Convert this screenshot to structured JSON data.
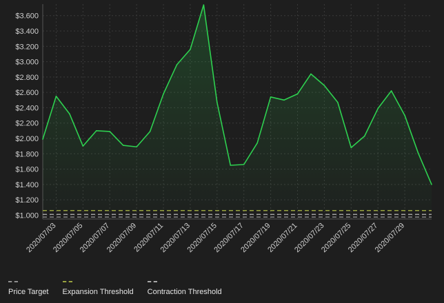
{
  "chart_data": {
    "type": "area",
    "x": [
      "2020/07/02",
      "2020/07/03",
      "2020/07/04",
      "2020/07/05",
      "2020/07/06",
      "2020/07/07",
      "2020/07/08",
      "2020/07/09",
      "2020/07/10",
      "2020/07/11",
      "2020/07/12",
      "2020/07/13",
      "2020/07/14",
      "2020/07/15",
      "2020/07/16",
      "2020/07/17",
      "2020/07/18",
      "2020/07/19",
      "2020/07/20",
      "2020/07/21",
      "2020/07/22",
      "2020/07/23",
      "2020/07/24",
      "2020/07/25",
      "2020/07/26",
      "2020/07/27",
      "2020/07/28",
      "2020/07/29",
      "2020/07/30",
      "2020/07/31"
    ],
    "x_tick_labels": [
      "2020/07/03",
      "2020/07/05",
      "2020/07/07",
      "2020/07/09",
      "2020/07/11",
      "2020/07/13",
      "2020/07/15",
      "2020/07/17",
      "2020/07/19",
      "2020/07/21",
      "2020/07/23",
      "2020/07/25",
      "2020/07/27",
      "2020/07/29"
    ],
    "series": [
      {
        "values": [
          1.99,
          2.55,
          2.32,
          1.9,
          2.1,
          2.09,
          1.91,
          1.89,
          2.09,
          2.58,
          2.96,
          3.16,
          3.74,
          2.47,
          1.65,
          1.66,
          1.94,
          2.54,
          2.5,
          2.58,
          2.84,
          2.69,
          2.47,
          1.88,
          2.03,
          2.39,
          2.62,
          2.3,
          1.81,
          1.4
        ],
        "color": "#2ed150"
      }
    ],
    "reference_lines": [
      {
        "name": "Price Target",
        "value": 0.975,
        "color": "#8f8f8f"
      },
      {
        "name": "Expansion Threshold",
        "value": 1.06,
        "color": "#9aa33f"
      },
      {
        "name": "Contraction Threshold",
        "value": 1.01,
        "color": "#a9a9a9"
      }
    ],
    "y_ticks": [
      "$1.000",
      "$1.200",
      "$1.400",
      "$1.600",
      "$1.800",
      "$2.000",
      "$2.200",
      "$2.400",
      "$2.600",
      "$2.800",
      "$3.000",
      "$3.200",
      "$3.400",
      "$3.600"
    ],
    "y_tick_values": [
      1.0,
      1.2,
      1.4,
      1.6,
      1.8,
      2.0,
      2.2,
      2.4,
      2.6,
      2.8,
      3.0,
      3.2,
      3.4,
      3.6
    ],
    "ylim": [
      0.95,
      3.75
    ],
    "grid": true,
    "legend_position": "bottom-left",
    "title": "",
    "xlabel": "",
    "ylabel": ""
  },
  "legend": {
    "items": [
      {
        "label": "Price Target",
        "color": "#8f8f8f"
      },
      {
        "label": "Expansion Threshold",
        "color": "#9aa33f"
      },
      {
        "label": "Contraction Threshold",
        "color": "#a9a9a9"
      }
    ]
  }
}
